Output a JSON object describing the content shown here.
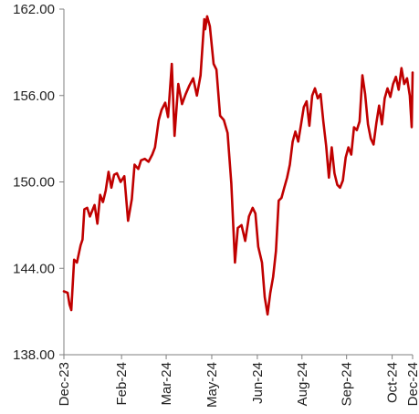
{
  "chart_data": {
    "type": "line",
    "title": "",
    "xlabel": "",
    "ylabel": "",
    "ylim": [
      138,
      162
    ],
    "yticks": [
      "138.00",
      "144.00",
      "150.00",
      "156.00",
      "162.00"
    ],
    "ytick_values": [
      138,
      144,
      150,
      156,
      162
    ],
    "xlim": [
      "2023-12-01",
      "2024-12-10"
    ],
    "xticks": [
      "Dec-23",
      "Feb-24",
      "Mar-24",
      "May-24",
      "Jun-24",
      "Aug-24",
      "Sep-24",
      "Oct-24",
      "Dec-24"
    ],
    "xtick_dates": [
      "2023-12-01",
      "2024-02-01",
      "2024-03-20",
      "2024-05-08",
      "2024-06-26",
      "2024-08-13",
      "2024-09-30",
      "2024-11-18",
      "2024-12-10"
    ],
    "grid": false,
    "legend": "none",
    "series_color": "#c00000",
    "series": [
      {
        "x": [
          "2023-12-01",
          "2023-12-05",
          "2023-12-07",
          "2023-12-09",
          "2023-12-12",
          "2023-12-15",
          "2023-12-19",
          "2023-12-21",
          "2023-12-23",
          "2023-12-26",
          "2023-12-29",
          "2024-01-03",
          "2024-01-06",
          "2024-01-09",
          "2024-01-12",
          "2024-01-15",
          "2024-01-18",
          "2024-01-21",
          "2024-01-24",
          "2024-01-27",
          "2024-01-31",
          "2024-02-04",
          "2024-02-08",
          "2024-02-12",
          "2024-02-15",
          "2024-02-19",
          "2024-02-22",
          "2024-02-26",
          "2024-03-01",
          "2024-03-05",
          "2024-03-08",
          "2024-03-12",
          "2024-03-15",
          "2024-03-19",
          "2024-03-22",
          "2024-03-26",
          "2024-03-29",
          "2024-04-02",
          "2024-04-06",
          "2024-04-10",
          "2024-04-14",
          "2024-04-18",
          "2024-04-22",
          "2024-04-26",
          "2024-04-30",
          "2024-05-01",
          "2024-05-03",
          "2024-05-06",
          "2024-05-10",
          "2024-05-13",
          "2024-05-17",
          "2024-05-21",
          "2024-05-25",
          "2024-05-29",
          "2024-06-02",
          "2024-06-05",
          "2024-06-09",
          "2024-06-13",
          "2024-06-17",
          "2024-06-21",
          "2024-06-24",
          "2024-06-27",
          "2024-07-01",
          "2024-07-04",
          "2024-07-07",
          "2024-07-10",
          "2024-07-13",
          "2024-07-16",
          "2024-07-19",
          "2024-07-22",
          "2024-07-25",
          "2024-07-28",
          "2024-07-31",
          "2024-08-03",
          "2024-08-06",
          "2024-08-09",
          "2024-08-12",
          "2024-08-15",
          "2024-08-18",
          "2024-08-21",
          "2024-08-24",
          "2024-08-27",
          "2024-08-30",
          "2024-09-02",
          "2024-09-05",
          "2024-09-08",
          "2024-09-11",
          "2024-09-14",
          "2024-09-17",
          "2024-09-20",
          "2024-09-23",
          "2024-09-26",
          "2024-09-29",
          "2024-10-02",
          "2024-10-05",
          "2024-10-08",
          "2024-10-11",
          "2024-10-14",
          "2024-10-17",
          "2024-10-20",
          "2024-10-23",
          "2024-10-26",
          "2024-10-29",
          "2024-11-01",
          "2024-11-04",
          "2024-11-07",
          "2024-11-10",
          "2024-11-13",
          "2024-11-16",
          "2024-11-19",
          "2024-11-22",
          "2024-11-25",
          "2024-11-28",
          "2024-12-01",
          "2024-12-04",
          "2024-12-07",
          "2024-12-09",
          "2024-12-10"
        ],
        "y": [
          142.4,
          142.3,
          141.5,
          141.1,
          144.6,
          144.4,
          145.6,
          146.0,
          148.1,
          148.2,
          147.6,
          148.4,
          147.1,
          149.1,
          148.6,
          149.4,
          150.7,
          149.6,
          150.5,
          150.6,
          150.0,
          150.4,
          147.3,
          148.8,
          151.2,
          150.9,
          151.5,
          151.6,
          151.4,
          151.9,
          152.4,
          154.3,
          155.0,
          155.5,
          154.5,
          158.2,
          153.2,
          156.8,
          155.4,
          156.1,
          156.7,
          157.2,
          156.0,
          157.4,
          161.3,
          160.6,
          161.5,
          160.8,
          158.2,
          157.8,
          154.6,
          154.3,
          153.4,
          149.9,
          144.4,
          146.8,
          147.0,
          145.9,
          147.6,
          148.2,
          147.8,
          145.5,
          144.4,
          142.0,
          140.8,
          142.3,
          143.4,
          145.2,
          148.7,
          148.9,
          149.6,
          150.3,
          151.2,
          152.8,
          153.5,
          152.8,
          154.0,
          155.2,
          155.6,
          153.9,
          156.0,
          156.5,
          155.8,
          156.1,
          154.2,
          152.5,
          150.3,
          152.4,
          150.6,
          149.8,
          149.6,
          150.1,
          151.7,
          152.4,
          151.9,
          153.8,
          153.6,
          154.2,
          157.4,
          156.1,
          154.0,
          153.0,
          152.6,
          154.1,
          155.3,
          154.0,
          155.8,
          156.5,
          155.9,
          156.8,
          157.3,
          156.4,
          157.9,
          156.8,
          157.2,
          156.0,
          153.8,
          157.6
        ]
      }
    ]
  }
}
